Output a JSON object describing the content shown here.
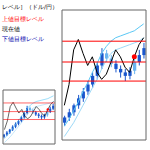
{
  "chart_data": {
    "type": "candlestick",
    "title": "レベル］（ドル/円）",
    "annotations": [
      {
        "text": "上値目標レベル",
        "color": "#ff0000"
      },
      {
        "text": "現在値",
        "color": "#000000"
      },
      {
        "text": "下値目標レベル",
        "color": "#0000aa"
      }
    ],
    "x": [
      0,
      1,
      2,
      3,
      4,
      5,
      6,
      7,
      8,
      9,
      10,
      11,
      12,
      13,
      14,
      15,
      16,
      17
    ],
    "open": [
      1.0,
      1.3,
      1.6,
      2.0,
      2.4,
      2.8,
      3.2,
      3.7,
      4.3,
      5.0,
      4.7,
      4.4,
      4.1,
      3.9,
      3.7,
      4.0,
      4.5,
      4.9
    ],
    "close": [
      1.3,
      1.6,
      2.0,
      2.4,
      2.8,
      3.2,
      3.7,
      4.3,
      5.0,
      4.7,
      4.4,
      4.1,
      3.9,
      3.7,
      4.0,
      4.5,
      4.9,
      5.3
    ],
    "high": [
      1.4,
      1.8,
      2.1,
      2.6,
      3.0,
      3.4,
      3.9,
      4.5,
      5.3,
      5.2,
      4.9,
      4.6,
      4.3,
      4.1,
      4.2,
      4.8,
      5.2,
      5.6
    ],
    "low": [
      0.8,
      1.1,
      1.4,
      1.8,
      2.2,
      2.6,
      3.0,
      3.5,
      4.1,
      4.5,
      4.2,
      3.9,
      3.6,
      3.4,
      3.5,
      3.8,
      4.3,
      4.7
    ],
    "colors": [
      "#1a56cc",
      "#1a56cc",
      "#1a56cc",
      "#1a56cc",
      "#1a56cc",
      "#1a56cc",
      "#1a56cc",
      "#1a56cc",
      "#1a56cc",
      "#6ab4f0",
      "#6ab4f0",
      "#1a56cc",
      "#1a56cc",
      "#1a56cc",
      "#1a56cc",
      "#6ab4f0",
      "#1a56cc",
      "#1a56cc"
    ],
    "series": [
      {
        "type": "line",
        "color": "#5bc8f5",
        "values": [
          0.8,
          1.2,
          1.7,
          2.2,
          2.8,
          3.3,
          3.9,
          4.4,
          5.0,
          5.4,
          5.7,
          5.9,
          6.0,
          6.1,
          6.2,
          6.3,
          6.5,
          6.7
        ]
      },
      {
        "type": "line",
        "color": "#9dd9f7",
        "values": [
          0.2,
          0.6,
          1.0,
          1.5,
          2.0,
          2.5,
          3.0,
          3.5,
          4.1,
          4.6,
          5.0,
          5.2,
          5.3,
          5.4,
          5.5,
          5.6,
          5.7,
          5.9
        ]
      },
      {
        "type": "line",
        "color": "#000000",
        "values": [
          2.0,
          3.2,
          5.2,
          5.8,
          5.0,
          4.3,
          4.8,
          3.9,
          3.5,
          3.8,
          4.5,
          5.2,
          4.8,
          4.2,
          3.9,
          4.8,
          5.5,
          5.9
        ]
      }
    ],
    "hlines": [
      5.7,
      4.5,
      3.4
    ],
    "hline_color": "#ff0000",
    "points": [
      {
        "x": 15,
        "y": 4.8
      }
    ],
    "point_color": "#ff0000",
    "xlim": [
      -0.5,
      17.5
    ],
    "ylim": [
      0.0,
      7.5
    ],
    "xticks": [],
    "yticks": [],
    "tick_labels": false,
    "grid": false
  }
}
